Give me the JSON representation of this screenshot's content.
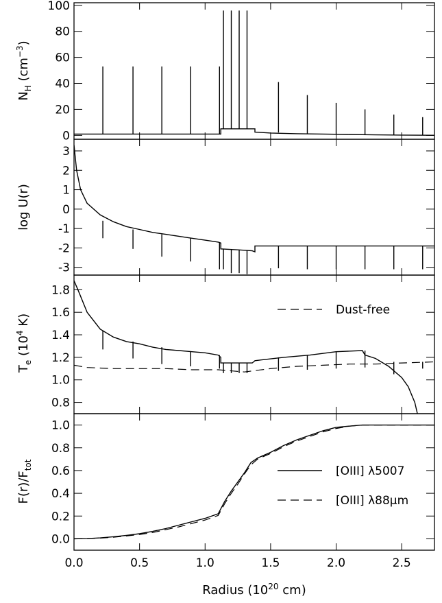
{
  "chart_data": [
    {
      "type": "line",
      "panel": "density",
      "ylabel": "N_H (cm^-3)",
      "xlim": [
        0,
        2.75
      ],
      "ylim": [
        -3,
        102
      ],
      "yticks": [
        0,
        20,
        40,
        60,
        80,
        100
      ],
      "series": [
        {
          "style": "solid",
          "x": [
            0.0,
            1.12,
            1.12,
            1.38,
            1.38,
            1.5,
            1.7,
            1.9,
            2.1,
            2.3,
            2.5,
            2.75
          ],
          "y": [
            1,
            1,
            5,
            5,
            2.5,
            1.8,
            1.3,
            1.0,
            0.7,
            0.4,
            0.2,
            0.05
          ]
        }
      ],
      "spikes": {
        "x": [
          0.22,
          0.45,
          0.67,
          0.89,
          1.11,
          1.14,
          1.2,
          1.26,
          1.32,
          1.56,
          1.78,
          2.0,
          2.22,
          2.44,
          2.66
        ],
        "base": [
          1,
          1,
          1,
          1,
          1,
          5,
          5,
          5,
          5,
          2.2,
          1.5,
          0.9,
          0.5,
          0.3,
          0.1
        ],
        "top": [
          53,
          53,
          53,
          53,
          53,
          96,
          96,
          96,
          96,
          41,
          31,
          25,
          20,
          16,
          14
        ]
      }
    },
    {
      "type": "line",
      "panel": "ionization",
      "ylabel": "log U(r)",
      "xlim": [
        0,
        2.75
      ],
      "ylim": [
        -3.4,
        3.6
      ],
      "yticks": [
        -3,
        -2,
        -1,
        0,
        1,
        2,
        3
      ],
      "series": [
        {
          "style": "solid",
          "x": [
            0.0,
            0.02,
            0.05,
            0.1,
            0.2,
            0.3,
            0.4,
            0.5,
            0.6,
            0.7,
            0.8,
            0.9,
            1.0,
            1.1,
            1.12,
            1.12,
            1.25,
            1.36,
            1.38,
            1.38,
            2.75
          ],
          "y": [
            3.3,
            2.0,
            1.0,
            0.3,
            -0.3,
            -0.65,
            -0.9,
            -1.05,
            -1.2,
            -1.3,
            -1.4,
            -1.5,
            -1.6,
            -1.7,
            -1.75,
            -2.05,
            -2.1,
            -2.15,
            -2.2,
            -1.9,
            -1.9
          ]
        }
      ],
      "spikes": {
        "x": [
          0.22,
          0.45,
          0.67,
          0.89,
          1.11,
          1.14,
          1.2,
          1.26,
          1.32,
          1.56,
          1.78,
          2.0,
          2.22,
          2.44,
          2.66
        ],
        "base": [
          -0.6,
          -1.05,
          -1.3,
          -1.5,
          -1.7,
          -2.05,
          -2.07,
          -2.1,
          -2.12,
          -1.9,
          -1.9,
          -1.9,
          -1.9,
          -1.9,
          -1.9
        ],
        "top": [
          -1.5,
          -2.05,
          -2.45,
          -2.7,
          -3.1,
          -3.1,
          -3.3,
          -3.3,
          -3.35,
          -3.05,
          -3.1,
          -3.1,
          -3.1,
          -3.1,
          -3.1
        ]
      }
    },
    {
      "type": "line",
      "panel": "temperature",
      "ylabel": "T_e (10^4 K)",
      "xlim": [
        0,
        2.75
      ],
      "ylim": [
        0.7,
        1.93
      ],
      "yticks": [
        0.8,
        1.0,
        1.2,
        1.4,
        1.6,
        1.8
      ],
      "legend": [
        {
          "style": "dashed",
          "label": "Dust-free"
        }
      ],
      "legend_position": "top-right",
      "series": [
        {
          "style": "solid",
          "x": [
            0.0,
            0.03,
            0.1,
            0.2,
            0.3,
            0.4,
            0.5,
            0.6,
            0.7,
            0.8,
            0.9,
            1.0,
            1.1,
            1.12,
            1.12,
            1.2,
            1.3,
            1.36,
            1.38,
            1.45,
            1.6,
            1.8,
            2.0,
            2.2,
            2.22,
            2.3,
            2.4,
            2.5,
            2.55,
            2.6,
            2.62
          ],
          "y": [
            1.88,
            1.8,
            1.6,
            1.45,
            1.38,
            1.34,
            1.32,
            1.29,
            1.27,
            1.26,
            1.25,
            1.24,
            1.22,
            1.2,
            1.15,
            1.15,
            1.15,
            1.15,
            1.17,
            1.18,
            1.2,
            1.22,
            1.25,
            1.26,
            1.22,
            1.19,
            1.12,
            1.02,
            0.94,
            0.8,
            0.7
          ]
        },
        {
          "name": "Dust-free",
          "style": "dashed",
          "x": [
            0.0,
            0.1,
            0.3,
            0.5,
            0.7,
            0.9,
            1.1,
            1.3,
            1.5,
            1.7,
            1.9,
            2.1,
            2.3,
            2.5,
            2.75
          ],
          "y": [
            1.13,
            1.11,
            1.1,
            1.1,
            1.1,
            1.09,
            1.09,
            1.07,
            1.1,
            1.12,
            1.13,
            1.14,
            1.14,
            1.15,
            1.16
          ]
        }
      ],
      "spikes": {
        "x": [
          0.22,
          0.45,
          0.67,
          0.89,
          1.11,
          1.14,
          1.2,
          1.26,
          1.32,
          1.56,
          1.78,
          2.0,
          2.22,
          2.44,
          2.66
        ],
        "base": [
          1.44,
          1.34,
          1.29,
          1.25,
          1.22,
          1.15,
          1.15,
          1.15,
          1.15,
          1.2,
          1.22,
          1.25,
          1.26,
          1.16,
          1.16
        ],
        "top": [
          1.27,
          1.19,
          1.14,
          1.12,
          1.1,
          1.06,
          1.06,
          1.06,
          1.06,
          1.08,
          1.09,
          1.1,
          1.11,
          1.05,
          1.1
        ]
      }
    },
    {
      "type": "line",
      "panel": "cumulative-flux",
      "ylabel": "F(r)/F_tot",
      "xlabel": "Radius (10^20 cm)",
      "xlim": [
        0,
        2.75
      ],
      "ylim": [
        -0.1,
        1.1
      ],
      "xticks": [
        0.0,
        0.5,
        1.0,
        1.5,
        2.0,
        2.5
      ],
      "yticks": [
        0.0,
        0.2,
        0.4,
        0.6,
        0.8,
        1.0
      ],
      "legend": [
        {
          "style": "solid",
          "label": "[OIII] λ5007"
        },
        {
          "style": "dashed",
          "label": "[OIII] λ88μm"
        }
      ],
      "legend_position": "right",
      "series": [
        {
          "name": "[OIII] λ5007",
          "style": "solid",
          "x": [
            0.0,
            0.1,
            0.2,
            0.3,
            0.4,
            0.5,
            0.6,
            0.7,
            0.8,
            0.9,
            1.0,
            1.1,
            1.15,
            1.2,
            1.25,
            1.3,
            1.35,
            1.4,
            1.5,
            1.6,
            1.7,
            1.8,
            1.9,
            2.0,
            2.1,
            2.2,
            2.3,
            2.5,
            2.75
          ],
          "y": [
            0.0,
            0.002,
            0.008,
            0.018,
            0.03,
            0.045,
            0.065,
            0.09,
            0.12,
            0.15,
            0.18,
            0.22,
            0.33,
            0.42,
            0.5,
            0.58,
            0.67,
            0.71,
            0.76,
            0.82,
            0.87,
            0.91,
            0.95,
            0.98,
            0.99,
            1.0,
            1.0,
            1.0,
            1.0
          ]
        },
        {
          "name": "[OIII] λ88μm",
          "style": "dashed",
          "x": [
            0.0,
            0.1,
            0.2,
            0.3,
            0.4,
            0.5,
            0.6,
            0.7,
            0.8,
            0.9,
            1.0,
            1.1,
            1.15,
            1.2,
            1.25,
            1.3,
            1.35,
            1.4,
            1.5,
            1.6,
            1.7,
            1.8,
            1.9,
            2.0,
            2.1,
            2.2,
            2.3,
            2.5,
            2.75
          ],
          "y": [
            0.0,
            0.002,
            0.006,
            0.014,
            0.025,
            0.038,
            0.055,
            0.08,
            0.105,
            0.135,
            0.165,
            0.205,
            0.31,
            0.4,
            0.48,
            0.57,
            0.65,
            0.7,
            0.75,
            0.81,
            0.86,
            0.9,
            0.94,
            0.97,
            0.99,
            1.0,
            1.0,
            1.0,
            1.0
          ]
        }
      ]
    }
  ]
}
